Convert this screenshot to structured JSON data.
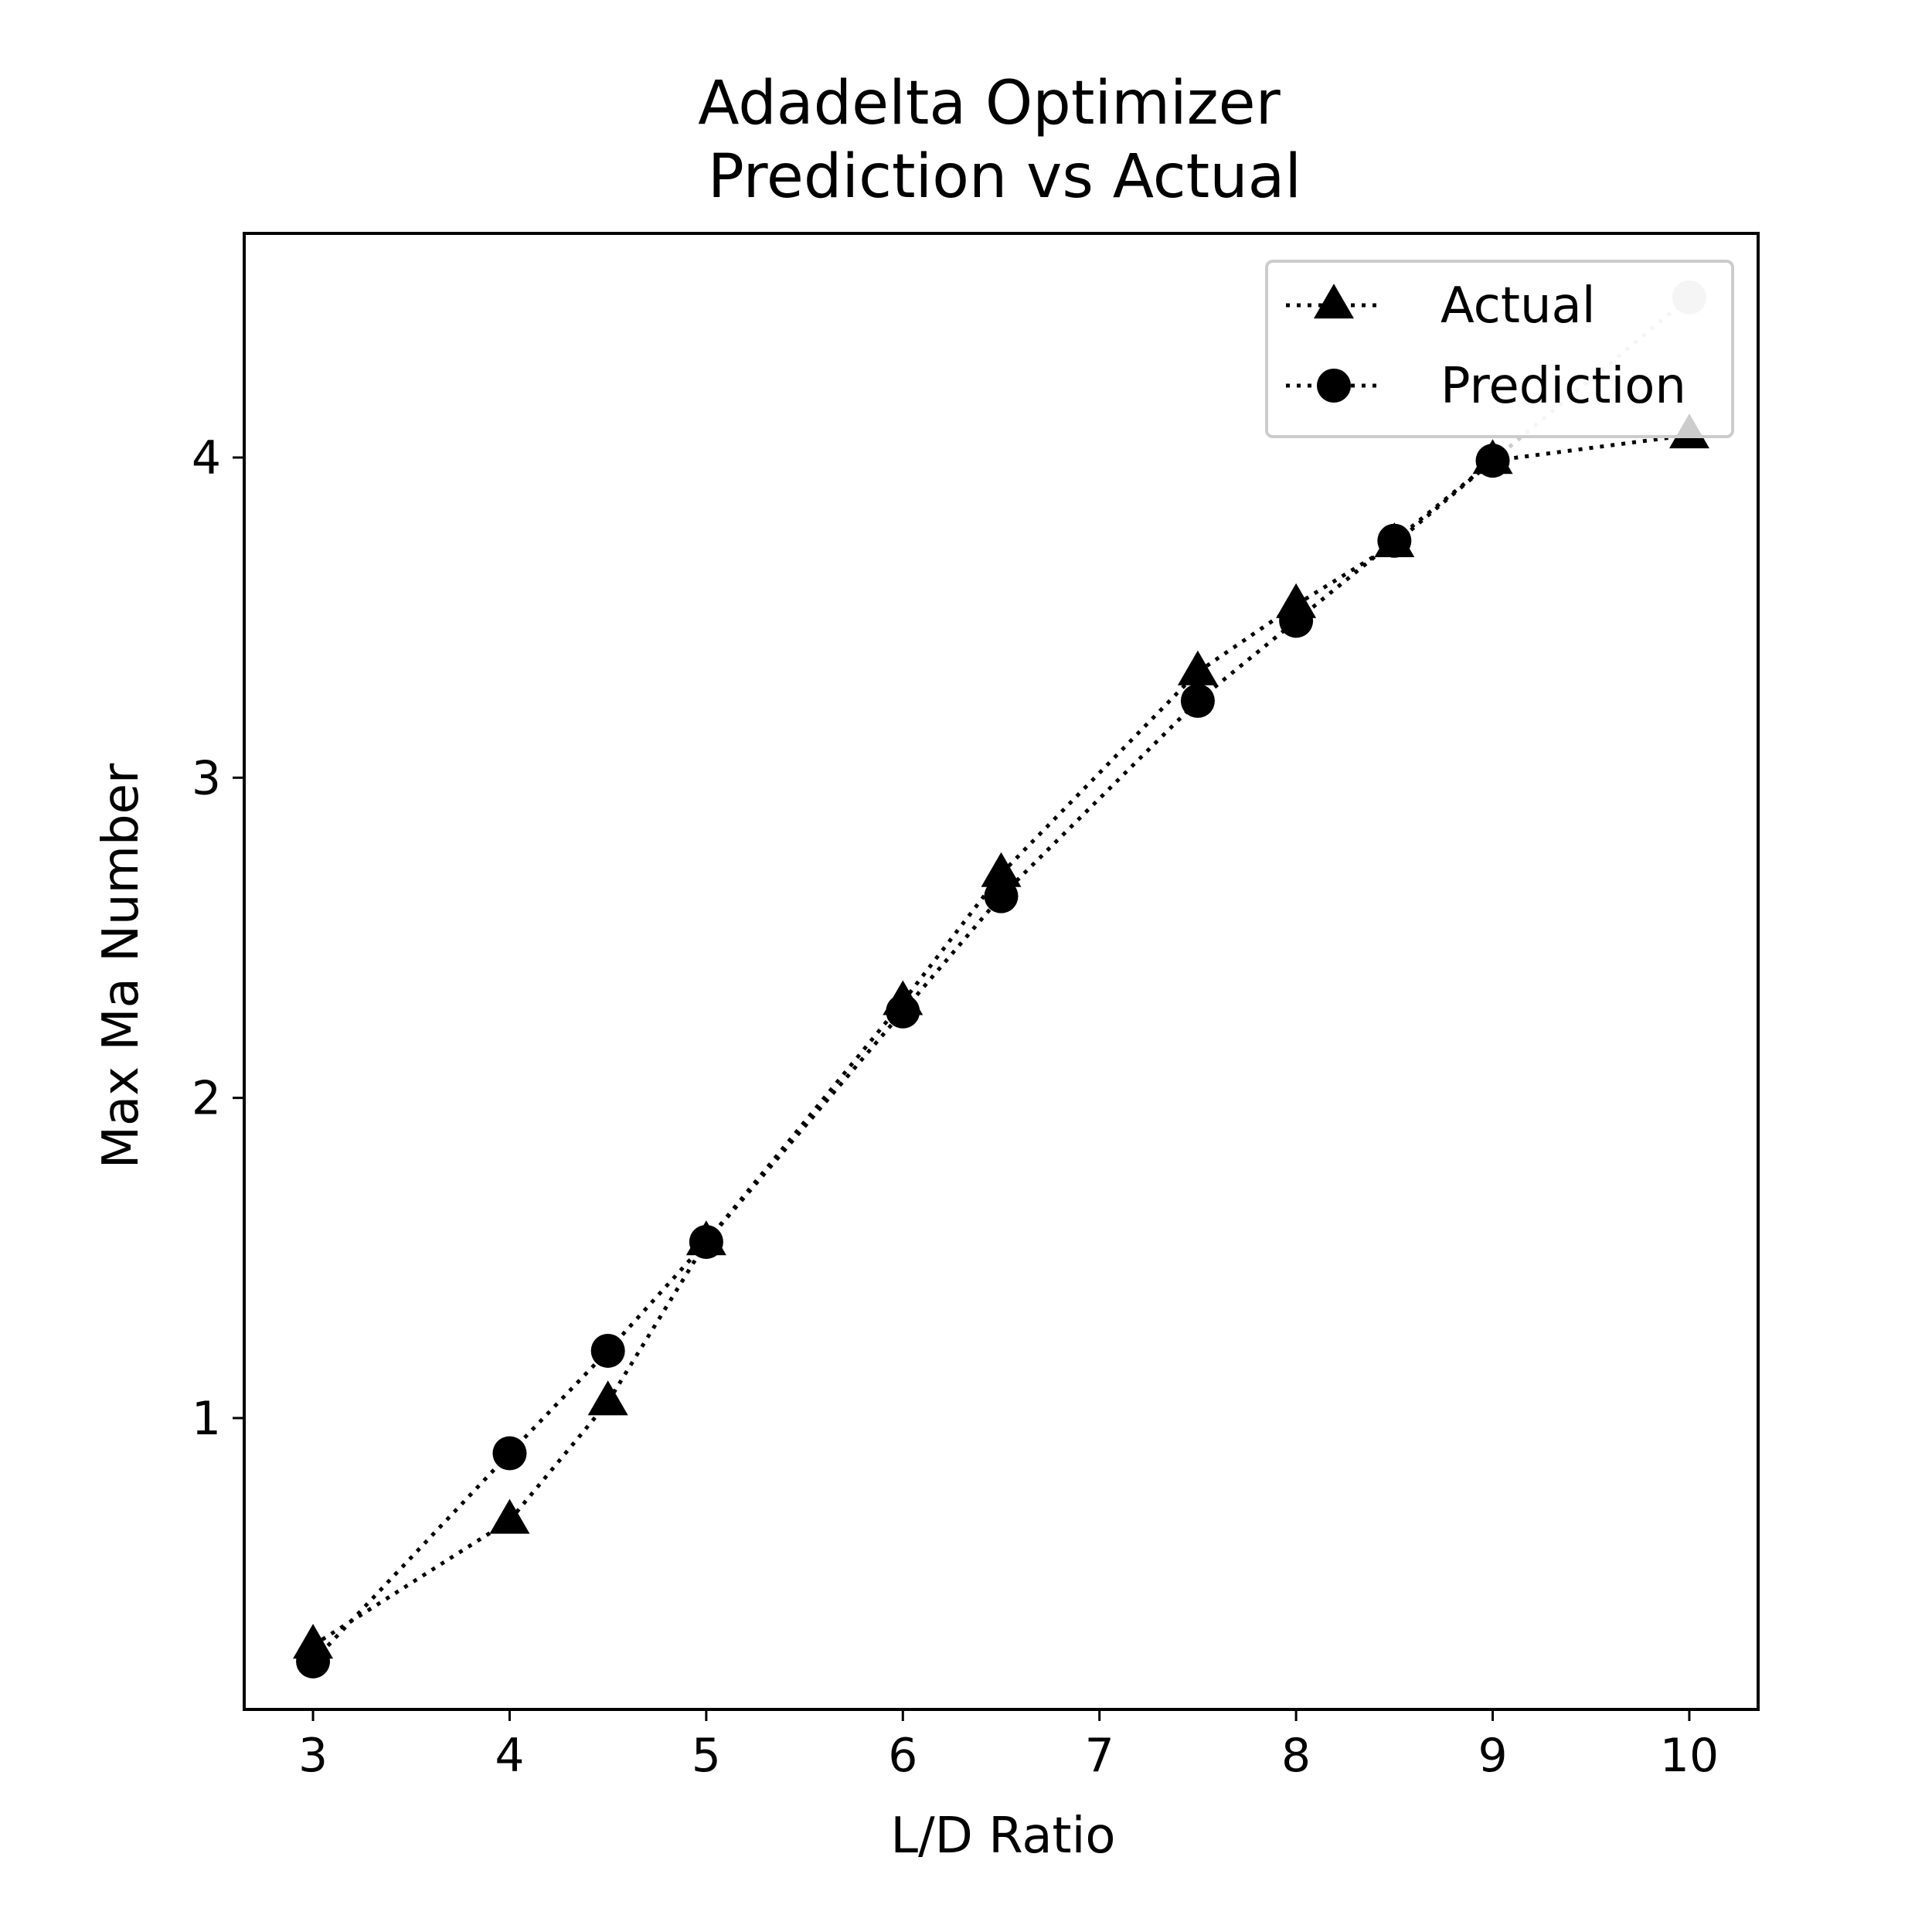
{
  "chart_data": {
    "type": "line",
    "title_line1": "Adadelta Optimizer",
    "title_line2": "Prediction vs Actual",
    "xlabel": "L/D Ratio",
    "ylabel": "Max Ma Number",
    "xlim": [
      2.65,
      10.35
    ],
    "ylim": [
      0.09,
      4.7
    ],
    "xticks": [
      3,
      4,
      5,
      6,
      7,
      8,
      9,
      10
    ],
    "yticks": [
      1,
      2,
      3,
      4
    ],
    "x": [
      3,
      4,
      4.5,
      5,
      6,
      6.5,
      7.5,
      8,
      8.5,
      9,
      10
    ],
    "series": [
      {
        "name": "Actual",
        "marker": "triangle",
        "line": "dotted",
        "color": "#000000",
        "values": [
          0.29,
          0.68,
          1.05,
          1.55,
          2.3,
          2.7,
          3.33,
          3.54,
          3.73,
          3.99,
          4.07
        ]
      },
      {
        "name": "Prediction",
        "marker": "circle",
        "line": "dotted",
        "color": "#000000",
        "values": [
          0.24,
          0.89,
          1.21,
          1.55,
          2.27,
          2.63,
          3.24,
          3.49,
          3.74,
          3.99,
          4.5
        ]
      }
    ],
    "faded_point": {
      "series": "Prediction",
      "x": 10,
      "color": "#cccccc"
    },
    "legend": {
      "position": "top-right",
      "entries": [
        "Actual",
        "Prediction"
      ]
    },
    "grid": false
  }
}
